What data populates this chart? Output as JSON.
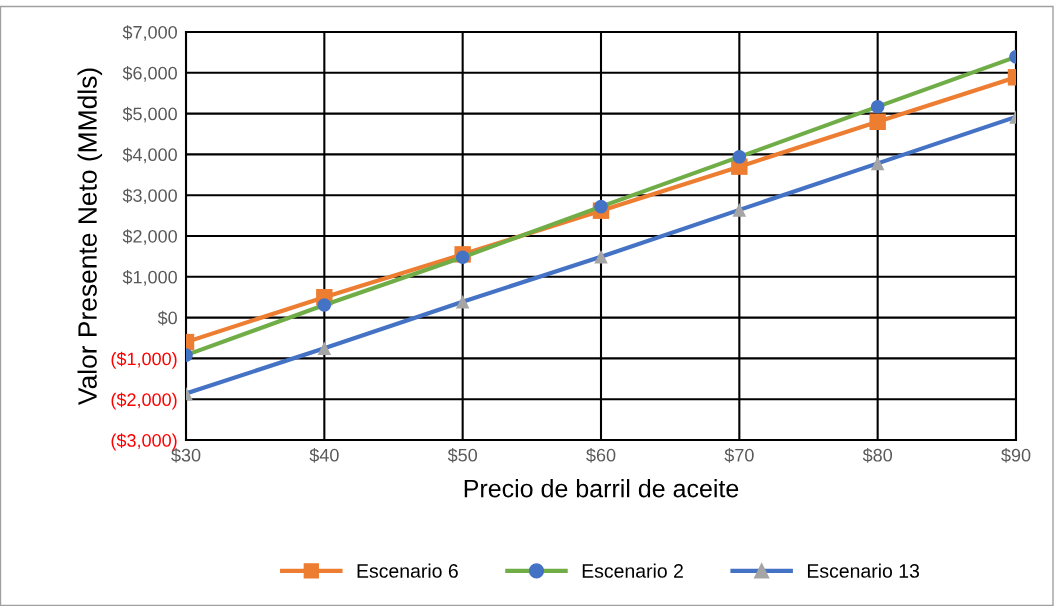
{
  "chart_data": {
    "type": "line",
    "xlabel": "Precio de barril de aceite",
    "ylabel": "Valor Presente Neto (MMdls)",
    "x": [
      30,
      40,
      50,
      60,
      70,
      80,
      90
    ],
    "xlim": [
      30,
      90
    ],
    "xticks": [
      {
        "value": 30,
        "label": "$30"
      },
      {
        "value": 40,
        "label": "$40"
      },
      {
        "value": 50,
        "label": "$50"
      },
      {
        "value": 60,
        "label": "$60"
      },
      {
        "value": 70,
        "label": "$70"
      },
      {
        "value": 80,
        "label": "$80"
      },
      {
        "value": 90,
        "label": "$90"
      }
    ],
    "ylim": [
      -3000,
      7000
    ],
    "yticks": [
      {
        "value": -3000,
        "label": "($3,000)"
      },
      {
        "value": -2000,
        "label": "($2,000)"
      },
      {
        "value": -1000,
        "label": "($1,000)"
      },
      {
        "value": 0,
        "label": "$0"
      },
      {
        "value": 1000,
        "label": "$1,000"
      },
      {
        "value": 2000,
        "label": "$2,000"
      },
      {
        "value": 3000,
        "label": "$3,000"
      },
      {
        "value": 4000,
        "label": "$4,000"
      },
      {
        "value": 5000,
        "label": "$5,000"
      },
      {
        "value": 6000,
        "label": "$6,000"
      },
      {
        "value": 7000,
        "label": "$7,000"
      }
    ],
    "grid": true,
    "legend": "bottom",
    "series": [
      {
        "name": "Escenario 6",
        "color": "#ed7d31",
        "colors": [
          "#ed7d31",
          "#ed7d31",
          "#ed7d31",
          "#ed7d31",
          "#ed7d31",
          "#ed7d31",
          "#ed7d31"
        ],
        "marker": "square",
        "values": [
          -600,
          500,
          1550,
          2620,
          3700,
          4800,
          5890
        ]
      },
      {
        "name": "Escenario 2",
        "color": "#70ad47",
        "colors": [
          "#4472c4",
          "#4472c4",
          "#4472c4",
          "#4472c4",
          "#4472c4",
          "#4472c4",
          "#4472c4"
        ],
        "marker": "circle",
        "values": [
          -920,
          310,
          1480,
          2720,
          3940,
          5170,
          6390
        ]
      },
      {
        "name": "Escenario 13",
        "color": "#4472c4",
        "colors": [
          "#a5a5a5",
          "#a5a5a5",
          "#a5a5a5",
          "#a5a5a5",
          "#a5a5a5",
          "#a5a5a5",
          "#a5a5a5"
        ],
        "marker": "triangle",
        "values": [
          -1860,
          -750,
          390,
          1490,
          2640,
          3780,
          4920
        ]
      }
    ]
  }
}
